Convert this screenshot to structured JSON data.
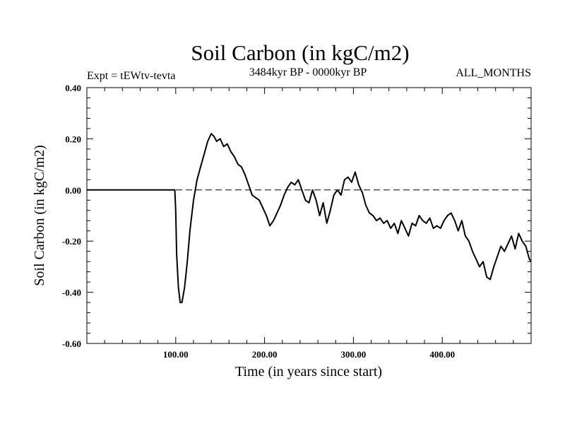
{
  "chart_data": {
    "type": "line",
    "title": "Soil Carbon (in kgC/m2)",
    "subtitle_left": "Expt = tEWtv-tevta",
    "subtitle_center": "3484kyr BP - 0000kyr BP",
    "subtitle_right": "ALL_MONTHS",
    "xlabel": "Time (in years since start)",
    "ylabel": "Soil Carbon (in kgC/m2)",
    "xlim": [
      0,
      500
    ],
    "ylim": [
      -0.6,
      0.4
    ],
    "x_ticks": [
      100,
      200,
      300,
      400
    ],
    "x_tick_labels": [
      "100.00",
      "200.00",
      "300.00",
      "400.00"
    ],
    "y_ticks": [
      -0.6,
      -0.4,
      -0.2,
      0.0,
      0.2,
      0.4
    ],
    "y_tick_labels": [
      "-0.60",
      "-0.40",
      "-0.20",
      "0.00",
      "0.20",
      "0.40"
    ],
    "reference_line": {
      "y": 0.0,
      "style": "dashed"
    },
    "grid": false,
    "series": [
      {
        "name": "Soil Carbon",
        "x": [
          0,
          99,
          100,
          101,
          103,
          105,
          107,
          110,
          113,
          116,
          120,
          124,
          128,
          132,
          136,
          140,
          143,
          146,
          150,
          154,
          158,
          162,
          166,
          170,
          174,
          178,
          182,
          186,
          190,
          194,
          198,
          202,
          206,
          210,
          214,
          218,
          222,
          226,
          230,
          234,
          238,
          242,
          246,
          250,
          254,
          258,
          262,
          266,
          270,
          274,
          278,
          282,
          286,
          290,
          294,
          298,
          302,
          306,
          310,
          314,
          318,
          322,
          326,
          330,
          334,
          338,
          342,
          346,
          350,
          354,
          358,
          362,
          366,
          370,
          374,
          378,
          382,
          386,
          390,
          394,
          398,
          402,
          406,
          410,
          414,
          418,
          422,
          426,
          430,
          434,
          438,
          442,
          446,
          450,
          454,
          458,
          462,
          466,
          470,
          474,
          478,
          482,
          486,
          490,
          494,
          498,
          500
        ],
        "y": [
          0.0,
          0.0,
          -0.08,
          -0.25,
          -0.38,
          -0.44,
          -0.44,
          -0.38,
          -0.28,
          -0.16,
          -0.04,
          0.04,
          0.09,
          0.14,
          0.19,
          0.22,
          0.21,
          0.19,
          0.2,
          0.17,
          0.18,
          0.15,
          0.13,
          0.1,
          0.09,
          0.06,
          0.02,
          -0.02,
          -0.03,
          -0.04,
          -0.07,
          -0.1,
          -0.14,
          -0.12,
          -0.09,
          -0.06,
          -0.02,
          0.01,
          0.03,
          0.02,
          0.04,
          0.0,
          -0.04,
          -0.05,
          0.0,
          -0.04,
          -0.1,
          -0.05,
          -0.13,
          -0.08,
          -0.02,
          0.0,
          -0.02,
          0.04,
          0.05,
          0.03,
          0.07,
          0.02,
          -0.01,
          -0.06,
          -0.09,
          -0.1,
          -0.12,
          -0.11,
          -0.13,
          -0.12,
          -0.15,
          -0.13,
          -0.17,
          -0.12,
          -0.15,
          -0.18,
          -0.13,
          -0.14,
          -0.1,
          -0.12,
          -0.13,
          -0.11,
          -0.15,
          -0.14,
          -0.15,
          -0.12,
          -0.1,
          -0.09,
          -0.12,
          -0.16,
          -0.12,
          -0.18,
          -0.2,
          -0.24,
          -0.27,
          -0.3,
          -0.28,
          -0.34,
          -0.35,
          -0.3,
          -0.26,
          -0.22,
          -0.24,
          -0.21,
          -0.18,
          -0.23,
          -0.17,
          -0.2,
          -0.22,
          -0.27,
          -0.28
        ]
      }
    ]
  }
}
